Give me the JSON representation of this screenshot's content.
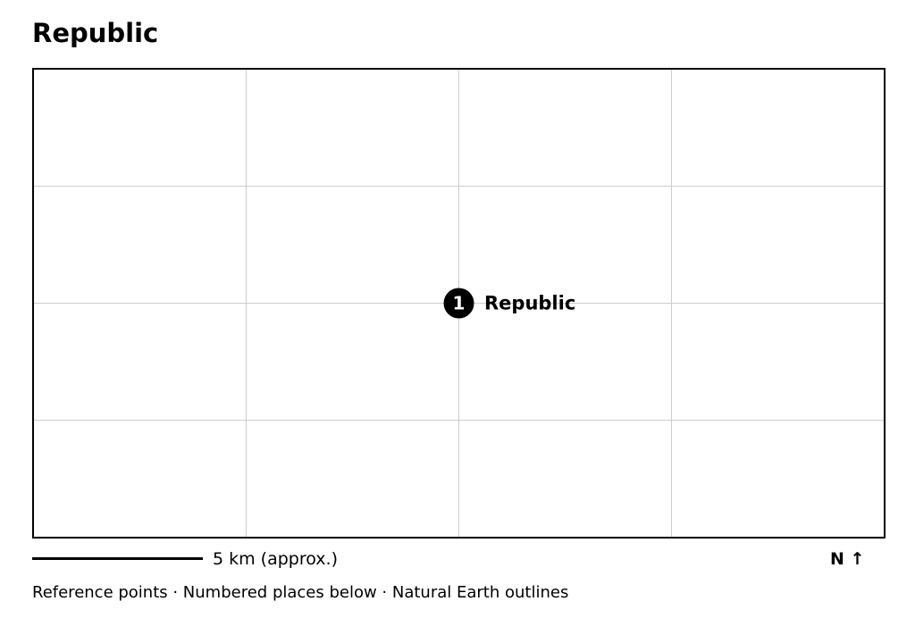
{
  "map": {
    "title": "Republic",
    "grid": true,
    "places": [
      {
        "number": "1",
        "name": "Republic"
      }
    ],
    "scale_label": "5 km (approx.)",
    "north_label": "N ↑",
    "attribution": "Reference points · Numbered places below · Natural Earth outlines",
    "colors": {
      "frame": "#000000",
      "grid": "#cccccc",
      "marker_fill": "#000000",
      "marker_text": "#ffffff",
      "background": "#ffffff"
    }
  }
}
